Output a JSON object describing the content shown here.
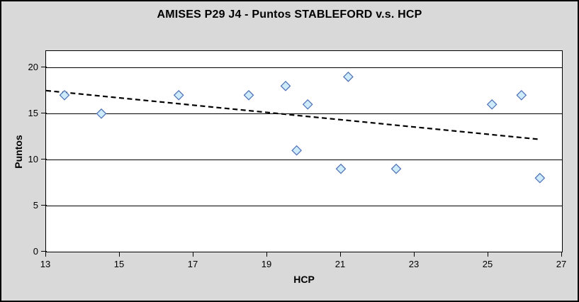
{
  "chart": {
    "background_color": "#D9D9D9",
    "plot_background_color": "#FFFFFF",
    "border_color": "#000000"
  },
  "chart_data": {
    "type": "scatter",
    "title": "AMISES P29 J4 - Puntos STABLEFORD v.s. HCP",
    "xlabel": "HCP",
    "ylabel": "Puntos",
    "xlim": [
      13,
      27
    ],
    "ylim": [
      0,
      21.8
    ],
    "x_ticks": [
      13,
      15,
      17,
      19,
      21,
      23,
      25,
      27
    ],
    "y_ticks": [
      0,
      5,
      10,
      15,
      20
    ],
    "grid": "horizontal",
    "legend_position": "none",
    "series": [
      {
        "name": "Puntos STABLEFORD",
        "marker": "diamond",
        "marker_fill": "#CDEBFA",
        "marker_stroke": "#4C6FB5",
        "points": [
          [
            13.5,
            17
          ],
          [
            14.5,
            15
          ],
          [
            16.6,
            17
          ],
          [
            18.5,
            17
          ],
          [
            19.5,
            18
          ],
          [
            19.8,
            11
          ],
          [
            20.1,
            16
          ],
          [
            21.0,
            9
          ],
          [
            21.2,
            19
          ],
          [
            22.5,
            9
          ],
          [
            25.1,
            16
          ],
          [
            25.9,
            17
          ],
          [
            26.4,
            8
          ]
        ]
      }
    ],
    "trendline": {
      "style": "dashed",
      "color": "#000000",
      "start": [
        13,
        17.5
      ],
      "end": [
        26.4,
        12.2
      ]
    }
  }
}
